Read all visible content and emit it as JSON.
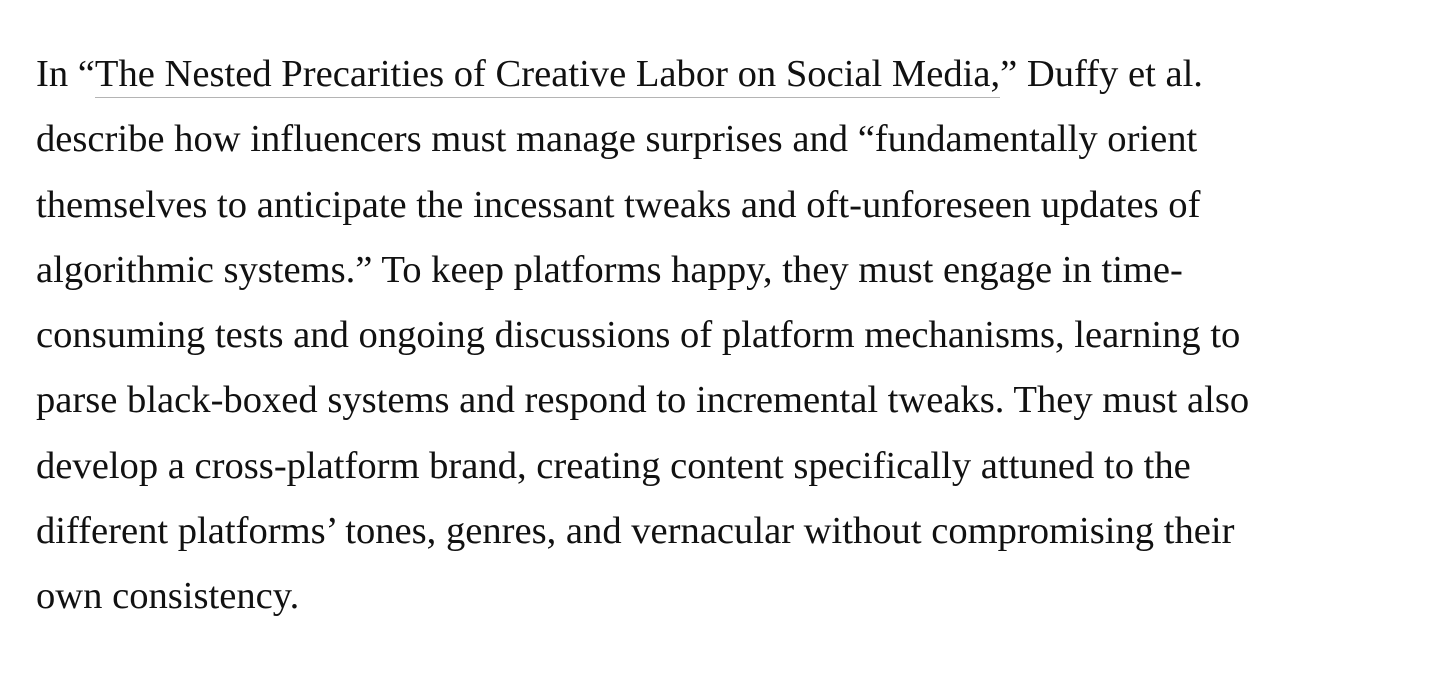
{
  "article": {
    "paragraph": {
      "line1": {
        "prefix": "In “",
        "link_text": "The Nested Precarities of Creative Labor on Social Media,",
        "suffix": "” Duffy et al."
      },
      "lines": [
        "describe how influencers must manage surprises and “fundamentally orient",
        "themselves to anticipate the incessant tweaks and oft-unforeseen updates of",
        "algorithmic systems.” To keep platforms happy, they must engage in time-",
        "consuming tests and ongoing discussions of platform mechanisms, learning to",
        "parse black-boxed systems and respond to incremental tweaks. They must also",
        "develop a cross-platform brand, creating content specifically attuned to the",
        "different platforms’ tones, genres, and vernacular without compromising their",
        "own consistency."
      ]
    }
  }
}
